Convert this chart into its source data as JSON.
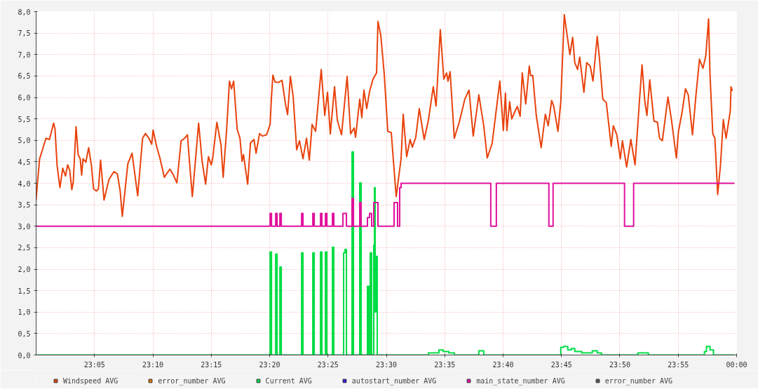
{
  "chart_data": {
    "type": "line",
    "xlim": [
      23.0,
      24.0
    ],
    "ylim": [
      0,
      8
    ],
    "xticks": [
      {
        "value": 23.0833,
        "label": "23:05"
      },
      {
        "value": 23.1667,
        "label": "23:10"
      },
      {
        "value": 23.25,
        "label": "23:15"
      },
      {
        "value": 23.3333,
        "label": "23:20"
      },
      {
        "value": 23.4167,
        "label": "23:25"
      },
      {
        "value": 23.5,
        "label": "23:30"
      },
      {
        "value": 23.5833,
        "label": "23:35"
      },
      {
        "value": 23.6667,
        "label": "23:40"
      },
      {
        "value": 23.75,
        "label": "23:45"
      },
      {
        "value": 23.8333,
        "label": "23:50"
      },
      {
        "value": 23.9167,
        "label": "23:55"
      },
      {
        "value": 24.0,
        "label": "00:00"
      }
    ],
    "yticks": [
      {
        "value": 0,
        "label": "0,0"
      },
      {
        "value": 0.5,
        "label": "0,5"
      },
      {
        "value": 1,
        "label": "1,0"
      },
      {
        "value": 1.5,
        "label": "1,5"
      },
      {
        "value": 2,
        "label": "2,0"
      },
      {
        "value": 2.5,
        "label": "2,5"
      },
      {
        "value": 3,
        "label": "3,0"
      },
      {
        "value": 3.5,
        "label": "3,5"
      },
      {
        "value": 4,
        "label": "4,0"
      },
      {
        "value": 4.5,
        "label": "4,5"
      },
      {
        "value": 5,
        "label": "5,0"
      },
      {
        "value": 5.5,
        "label": "5,5"
      },
      {
        "value": 6,
        "label": "6,0"
      },
      {
        "value": 6.5,
        "label": "6,5"
      },
      {
        "value": 7,
        "label": "7,0"
      },
      {
        "value": 7.5,
        "label": "7,5"
      },
      {
        "value": 8,
        "label": "8,0"
      }
    ],
    "grid": true,
    "legend": "bottom",
    "series": [
      {
        "name": "Windspeed AVG",
        "color": "#e8420c",
        "x": [
          23.0,
          23.002,
          23.005,
          23.009,
          23.014,
          23.019,
          23.025,
          23.027,
          23.03,
          23.034,
          23.038,
          23.042,
          23.045,
          23.048,
          23.051,
          23.053,
          23.057,
          23.06,
          23.063,
          23.065,
          23.067,
          23.071,
          23.075,
          23.079,
          23.082,
          23.086,
          23.089,
          23.092,
          23.097,
          23.104,
          23.111,
          23.116,
          23.12,
          23.123,
          23.131,
          23.137,
          23.145,
          23.152,
          23.156,
          23.161,
          23.165,
          23.167,
          23.172,
          23.177,
          23.183,
          23.191,
          23.196,
          23.201,
          23.207,
          23.212,
          23.216,
          23.219,
          23.223,
          23.232,
          23.237,
          23.242,
          23.246,
          23.25,
          23.252,
          23.258,
          23.264,
          23.267,
          23.272,
          23.276,
          23.279,
          23.282,
          23.287,
          23.291,
          23.294,
          23.296,
          23.302,
          23.306,
          23.311,
          23.314,
          23.319,
          23.323,
          23.329,
          23.334,
          23.336,
          23.338,
          23.341,
          23.346,
          23.351,
          23.356,
          23.359,
          23.363,
          23.367,
          23.372,
          23.376,
          23.381,
          23.386,
          23.39,
          23.394,
          23.399,
          23.407,
          23.412,
          23.416,
          23.42,
          23.426,
          23.43,
          23.436,
          23.444,
          23.449,
          23.454,
          23.456,
          23.462,
          23.465,
          23.468,
          23.472,
          23.476,
          23.481,
          23.486,
          23.488,
          23.492,
          23.497,
          23.502,
          23.507,
          23.514,
          23.521,
          23.524,
          23.529,
          23.534,
          23.537,
          23.542,
          23.547,
          23.554,
          23.56,
          23.567,
          23.571,
          23.577,
          23.582,
          23.586,
          23.588,
          23.591,
          23.597,
          23.604,
          23.612,
          23.618,
          23.624,
          23.632,
          23.639,
          23.644,
          23.651,
          23.662,
          23.667,
          23.67,
          23.672,
          23.676,
          23.679,
          23.684,
          23.687,
          23.691,
          23.694,
          23.699,
          23.704,
          23.706,
          23.709,
          23.714,
          23.721,
          23.727,
          23.731,
          23.736,
          23.739,
          23.745,
          23.749,
          23.754,
          23.758,
          23.762,
          23.766,
          23.769,
          23.773,
          23.776,
          23.782,
          23.786,
          23.791,
          23.795,
          23.801,
          23.804,
          23.809,
          23.814,
          23.821,
          23.824,
          23.829,
          23.834,
          23.837,
          23.843,
          23.849,
          23.855,
          23.861,
          23.865,
          23.869,
          23.872,
          23.876,
          23.882,
          23.887,
          23.89,
          23.894,
          23.902,
          23.907,
          23.914,
          23.917,
          23.922,
          23.927,
          23.931,
          23.937,
          23.942,
          23.947,
          23.952,
          23.956,
          23.96,
          23.962,
          23.966,
          23.969,
          23.973,
          23.977,
          23.981,
          23.985,
          23.991,
          23.992,
          23.994
        ],
        "values": [
          3.61,
          4.03,
          4.57,
          4.78,
          5.05,
          5.02,
          5.4,
          5.26,
          4.41,
          3.9,
          4.35,
          4.17,
          4.43,
          4.3,
          3.85,
          4.03,
          5.32,
          4.67,
          4.57,
          4.19,
          4.57,
          4.49,
          4.83,
          4.41,
          3.87,
          3.82,
          3.87,
          4.54,
          3.61,
          4.09,
          4.27,
          4.22,
          3.82,
          3.23,
          4.46,
          4.7,
          3.71,
          5.05,
          5.16,
          5.05,
          4.91,
          5.24,
          4.86,
          4.57,
          4.14,
          4.33,
          4.19,
          4.01,
          4.99,
          5.05,
          5.13,
          4.49,
          3.69,
          5.4,
          4.51,
          3.98,
          4.62,
          4.43,
          4.57,
          5.42,
          4.89,
          4.14,
          5.26,
          6.38,
          6.2,
          6.38,
          5.26,
          5.05,
          4.51,
          4.67,
          3.98,
          4.94,
          5.02,
          4.7,
          5.16,
          5.1,
          5.13,
          5.37,
          6.01,
          6.52,
          6.36,
          6.35,
          6.4,
          5.85,
          5.6,
          6.49,
          6.01,
          4.78,
          4.99,
          4.57,
          5.05,
          4.54,
          5.37,
          5.21,
          6.65,
          5.58,
          6.12,
          5.15,
          6.25,
          5.47,
          5.13,
          6.49,
          5.15,
          5.29,
          5.07,
          5.96,
          5.53,
          6.17,
          5.74,
          6.14,
          6.43,
          6.57,
          7.77,
          7.45,
          6.54,
          5.21,
          5.18,
          3.69,
          4.57,
          5.61,
          4.62,
          5.02,
          4.84,
          5.07,
          5.74,
          5.02,
          5.47,
          6.25,
          5.8,
          7.58,
          6.43,
          6.57,
          6.38,
          6.6,
          5.05,
          5.42,
          5.96,
          6.17,
          5.1,
          6.06,
          5.34,
          4.59,
          4.93,
          6.38,
          5.23,
          6.1,
          5.23,
          5.9,
          5.5,
          5.69,
          5.79,
          5.56,
          6.57,
          5.85,
          6.73,
          6.51,
          6.51,
          5.58,
          4.83,
          5.61,
          5.34,
          5.93,
          5.79,
          5.21,
          5.9,
          7.93,
          7.45,
          7.0,
          7.4,
          6.81,
          6.65,
          6.94,
          6.12,
          6.81,
          6.73,
          6.38,
          7.42,
          6.94,
          5.96,
          5.88,
          4.86,
          5.34,
          5.13,
          4.57,
          4.99,
          4.38,
          5.02,
          4.43,
          5.85,
          6.76,
          5.9,
          5.58,
          6.41,
          5.45,
          5.42,
          5.05,
          4.99,
          6.01,
          5.48,
          4.59,
          5.21,
          5.64,
          6.2,
          6.06,
          5.13,
          6.06,
          6.89,
          6.68,
          6.97,
          7.83,
          6.54,
          5.15,
          5.05,
          3.74,
          4.43,
          5.48,
          5.05,
          5.69,
          6.25,
          6.15
        ]
      },
      {
        "name": "error_number AVG",
        "color": "#e87500"
      },
      {
        "name": "Current AVG",
        "color": "#00dd44",
        "type": "step",
        "x": [
          23.0,
          23.334,
          23.336,
          23.342,
          23.344,
          23.348,
          23.35,
          23.379,
          23.381,
          23.395,
          23.397,
          23.406,
          23.408,
          23.413,
          23.415,
          23.423,
          23.425,
          23.439,
          23.441,
          23.443,
          23.451,
          23.453,
          23.462,
          23.464,
          23.473,
          23.475,
          23.477,
          23.479,
          23.482,
          23.483,
          23.484,
          23.485,
          23.487,
          23.56,
          23.575,
          23.581,
          23.589,
          23.597,
          23.632,
          23.639,
          23.749,
          23.753,
          23.759,
          23.764,
          23.769,
          23.779,
          23.794,
          23.801,
          23.807,
          23.859,
          23.874,
          23.954,
          23.957,
          23.962,
          23.967,
          23.997
        ],
        "values": [
          0,
          2.4,
          0,
          2.35,
          0,
          2.05,
          0,
          2.38,
          0,
          2.38,
          0,
          2.4,
          0,
          2.4,
          0,
          2.51,
          0,
          2.38,
          2.46,
          0,
          4.73,
          0,
          4.01,
          0,
          1.6,
          0,
          2.38,
          0,
          2.56,
          3.9,
          1.0,
          2.3,
          0,
          0.05,
          0.12,
          0.08,
          0.05,
          0,
          0.1,
          0,
          0.18,
          0.2,
          0.12,
          0.15,
          0.08,
          0.05,
          0.1,
          0.05,
          0,
          0.05,
          0,
          0.08,
          0.2,
          0.12,
          0,
          0
        ]
      },
      {
        "name": "autostart_number AVG",
        "color": "#3a12e0"
      },
      {
        "name": "main_state_number AVG",
        "color": "#e0109c",
        "type": "step",
        "x": [
          23.0,
          23.334,
          23.336,
          23.342,
          23.344,
          23.348,
          23.35,
          23.379,
          23.381,
          23.395,
          23.397,
          23.406,
          23.408,
          23.413,
          23.415,
          23.423,
          23.425,
          23.438,
          23.443,
          23.451,
          23.453,
          23.462,
          23.464,
          23.473,
          23.476,
          23.479,
          23.482,
          23.488,
          23.511,
          23.516,
          23.519,
          23.521,
          23.649,
          23.657,
          23.732,
          23.738,
          23.84,
          23.853,
          23.997
        ],
        "values": [
          3.0,
          3.3,
          3.0,
          3.3,
          3.0,
          3.3,
          3.0,
          3.3,
          3.0,
          3.3,
          3.0,
          3.3,
          3.0,
          3.3,
          3.0,
          3.3,
          3.0,
          3.3,
          3.0,
          3.65,
          3.0,
          3.55,
          3.0,
          3.2,
          3.3,
          3.0,
          3.55,
          3.0,
          3.55,
          3.0,
          3.9,
          4.0,
          3.0,
          4.0,
          3.0,
          4.0,
          3.0,
          4.0,
          4.0
        ]
      },
      {
        "name": "error_number AVG",
        "color": "#555555"
      }
    ]
  }
}
